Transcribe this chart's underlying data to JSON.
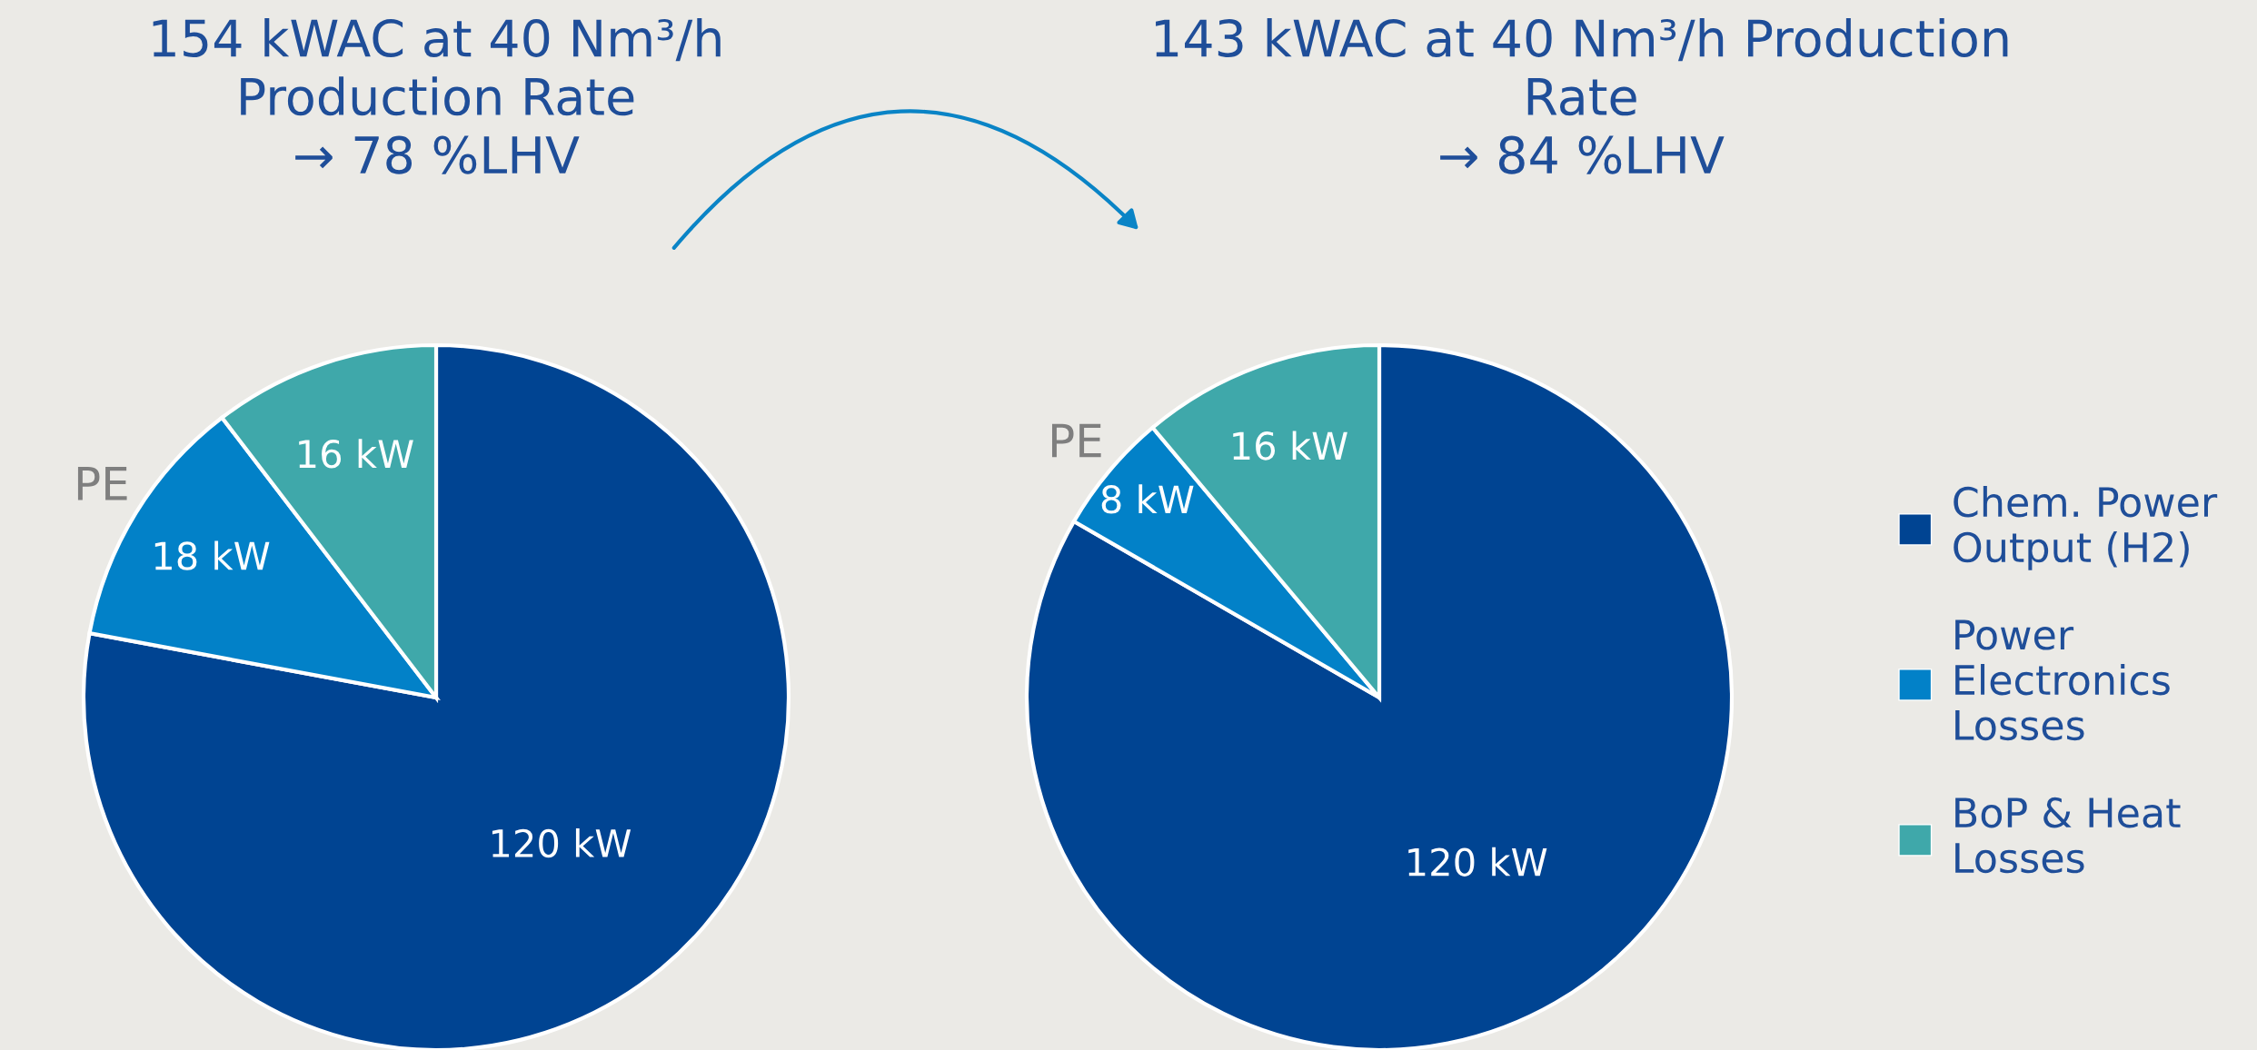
{
  "chart_data": [
    {
      "type": "pie",
      "title": "154 kWAC at 40 Nm³/h\nProduction Rate\n→ 78 %LHV",
      "categories": [
        "Chem. Power\nOutput (H2)",
        "Power\nElectronics\nLosses",
        "BoP & Heat\nLosses"
      ],
      "values": [
        120,
        18,
        16
      ],
      "colors": [
        "#004492",
        "#0281c8",
        "#3fa8aa"
      ],
      "value_labels": [
        "120 kW",
        "18 kW",
        "16 kW"
      ],
      "annotations": [
        "PE"
      ],
      "legend": "right"
    },
    {
      "type": "pie",
      "title": "143 kWAC at 40 Nm³/h Production\nRate\n→ 84 %LHV",
      "categories": [
        null,
        null,
        null
      ],
      "values": [
        120,
        8,
        16
      ],
      "colors": [
        "#004492",
        "#0281c8",
        "#3fa8aa"
      ],
      "value_labels": [
        "120 kW",
        "8 kW",
        "16 kW"
      ],
      "annotations": [
        "PE"
      ]
    }
  ]
}
